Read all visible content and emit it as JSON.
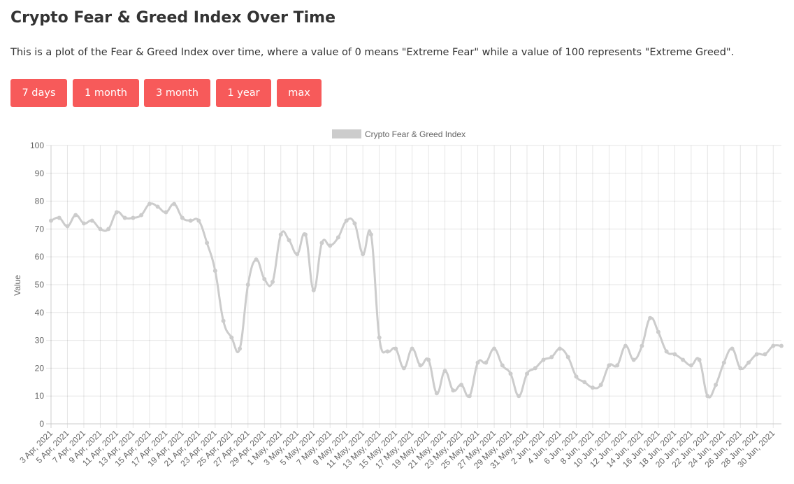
{
  "header": {
    "title": "Crypto Fear & Greed Index Over Time",
    "description": "This is a plot of the Fear & Greed Index over time, where a value of 0 means \"Extreme Fear\" while a value of 100 represents \"Extreme Greed\"."
  },
  "range_buttons": [
    "7 days",
    "1 month",
    "3 month",
    "1 year",
    "max"
  ],
  "chart_data": {
    "type": "line",
    "title": "",
    "xlabel": "",
    "ylabel": "Value",
    "ylim": [
      0,
      100
    ],
    "yticks": [
      0,
      10,
      20,
      30,
      40,
      50,
      60,
      70,
      80,
      90,
      100
    ],
    "grid": true,
    "legend_position": "top",
    "series": [
      {
        "name": "Crypto Fear & Greed Index",
        "color": "#cccccc",
        "x": [
          "3 Apr, 2021",
          "4 Apr, 2021",
          "5 Apr, 2021",
          "6 Apr, 2021",
          "7 Apr, 2021",
          "8 Apr, 2021",
          "9 Apr, 2021",
          "10 Apr, 2021",
          "11 Apr, 2021",
          "12 Apr, 2021",
          "13 Apr, 2021",
          "14 Apr, 2021",
          "15 Apr, 2021",
          "16 Apr, 2021",
          "17 Apr, 2021",
          "18 Apr, 2021",
          "19 Apr, 2021",
          "20 Apr, 2021",
          "21 Apr, 2021",
          "22 Apr, 2021",
          "23 Apr, 2021",
          "24 Apr, 2021",
          "25 Apr, 2021",
          "26 Apr, 2021",
          "27 Apr, 2021",
          "28 Apr, 2021",
          "29 Apr, 2021",
          "30 Apr, 2021",
          "1 May, 2021",
          "2 May, 2021",
          "3 May, 2021",
          "4 May, 2021",
          "5 May, 2021",
          "6 May, 2021",
          "7 May, 2021",
          "8 May, 2021",
          "9 May, 2021",
          "10 May, 2021",
          "11 May, 2021",
          "12 May, 2021",
          "13 May, 2021",
          "14 May, 2021",
          "15 May, 2021",
          "16 May, 2021",
          "17 May, 2021",
          "18 May, 2021",
          "19 May, 2021",
          "20 May, 2021",
          "21 May, 2021",
          "22 May, 2021",
          "23 May, 2021",
          "24 May, 2021",
          "25 May, 2021",
          "26 May, 2021",
          "27 May, 2021",
          "28 May, 2021",
          "29 May, 2021",
          "30 May, 2021",
          "31 May, 2021",
          "1 Jun, 2021",
          "2 Jun, 2021",
          "3 Jun, 2021",
          "4 Jun, 2021",
          "5 Jun, 2021",
          "6 Jun, 2021",
          "7 Jun, 2021",
          "8 Jun, 2021",
          "9 Jun, 2021",
          "10 Jun, 2021",
          "11 Jun, 2021",
          "12 Jun, 2021",
          "13 Jun, 2021",
          "14 Jun, 2021",
          "15 Jun, 2021",
          "16 Jun, 2021",
          "17 Jun, 2021",
          "18 Jun, 2021",
          "19 Jun, 2021",
          "20 Jun, 2021",
          "21 Jun, 2021",
          "22 Jun, 2021",
          "23 Jun, 2021",
          "24 Jun, 2021",
          "25 Jun, 2021",
          "26 Jun, 2021",
          "27 Jun, 2021",
          "28 Jun, 2021",
          "29 Jun, 2021",
          "30 Jun, 2021",
          "1 Jul, 2021"
        ],
        "values": [
          73,
          74,
          71,
          75,
          72,
          73,
          70,
          70,
          76,
          74,
          74,
          75,
          79,
          78,
          76,
          79,
          74,
          73,
          73,
          65,
          55,
          37,
          31,
          27,
          50,
          59,
          52,
          51,
          68,
          66,
          61,
          68,
          48,
          65,
          64,
          67,
          73,
          72,
          61,
          68,
          31,
          26,
          27,
          20,
          27,
          21,
          23,
          11,
          19,
          12,
          14,
          10,
          22,
          22,
          27,
          21,
          18,
          10,
          18,
          20,
          23,
          24,
          27,
          24,
          17,
          15,
          13,
          14,
          21,
          21,
          28,
          23,
          28,
          38,
          33,
          26,
          25,
          23,
          21,
          23,
          10,
          14,
          22,
          27,
          20,
          22,
          25,
          25,
          28,
          28
        ]
      }
    ],
    "x_tick_labels": [
      "3 Apr, 2021",
      "5 Apr, 2021",
      "7 Apr, 2021",
      "9 Apr, 2021",
      "11 Apr, 2021",
      "13 Apr, 2021",
      "15 Apr, 2021",
      "17 Apr, 2021",
      "19 Apr, 2021",
      "21 Apr, 2021",
      "23 Apr, 2021",
      "25 Apr, 2021",
      "27 Apr, 2021",
      "29 Apr, 2021",
      "1 May, 2021",
      "3 May, 2021",
      "5 May, 2021",
      "7 May, 2021",
      "9 May, 2021",
      "11 May, 2021",
      "13 May, 2021",
      "15 May, 2021",
      "17 May, 2021",
      "19 May, 2021",
      "21 May, 2021",
      "23 May, 2021",
      "25 May, 2021",
      "27 May, 2021",
      "29 May, 2021",
      "31 May, 2021",
      "2 Jun, 2021",
      "4 Jun, 2021",
      "6 Jun, 2021",
      "8 Jun, 2021",
      "10 Jun, 2021",
      "12 Jun, 2021",
      "14 Jun, 2021",
      "16 Jun, 2021",
      "18 Jun, 2021",
      "20 Jun, 2021",
      "22 Jun, 2021",
      "24 Jun, 2021",
      "26 Jun, 2021",
      "28 Jun, 2021",
      "30 Jun, 2021"
    ]
  }
}
